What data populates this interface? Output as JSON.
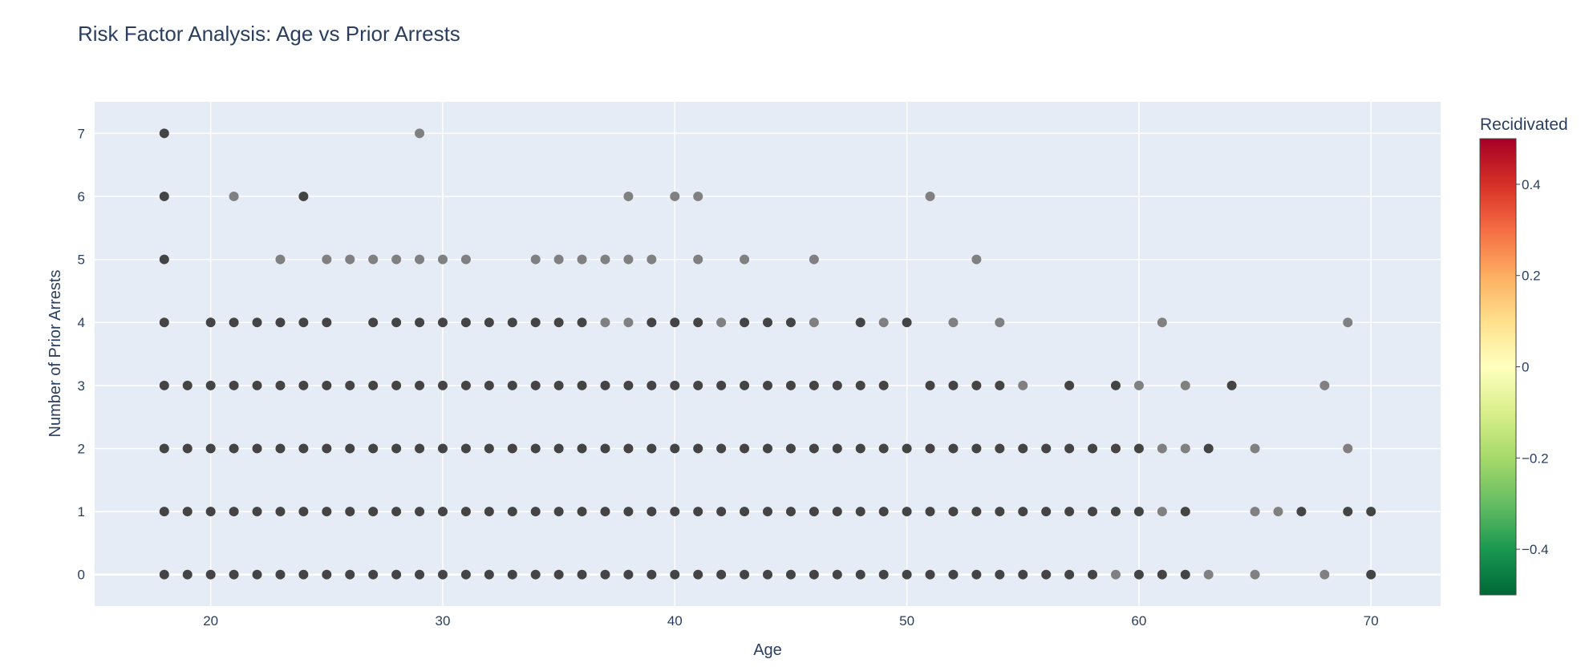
{
  "chart_data": {
    "type": "scatter",
    "title": "Risk Factor Analysis: Age vs Prior Arrests",
    "xlabel": "Age",
    "ylabel": "Number of Prior Arrests",
    "xlim": [
      15,
      73
    ],
    "ylim": [
      -0.5,
      7.5
    ],
    "xticks": [
      "20",
      "30",
      "40",
      "50",
      "60",
      "70"
    ],
    "yticks": [
      "0",
      "1",
      "2",
      "3",
      "4",
      "5",
      "6",
      "7"
    ],
    "grid": true,
    "marker_colors": {
      "dark": "#444444",
      "light": "#808080"
    },
    "points_dark": [
      [
        18,
        7
      ],
      [
        18,
        6
      ],
      [
        24,
        6
      ],
      [
        18,
        5
      ],
      [
        18,
        4
      ],
      [
        20,
        4
      ],
      [
        21,
        4
      ],
      [
        22,
        4
      ],
      [
        23,
        4
      ],
      [
        24,
        4
      ],
      [
        25,
        4
      ],
      [
        27,
        4
      ],
      [
        28,
        4
      ],
      [
        29,
        4
      ],
      [
        30,
        4
      ],
      [
        31,
        4
      ],
      [
        32,
        4
      ],
      [
        33,
        4
      ],
      [
        34,
        4
      ],
      [
        35,
        4
      ],
      [
        36,
        4
      ],
      [
        39,
        4
      ],
      [
        40,
        4
      ],
      [
        41,
        4
      ],
      [
        43,
        4
      ],
      [
        44,
        4
      ],
      [
        45,
        4
      ],
      [
        48,
        4
      ],
      [
        50,
        4
      ],
      [
        18,
        3
      ],
      [
        19,
        3
      ],
      [
        20,
        3
      ],
      [
        21,
        3
      ],
      [
        22,
        3
      ],
      [
        23,
        3
      ],
      [
        24,
        3
      ],
      [
        25,
        3
      ],
      [
        26,
        3
      ],
      [
        27,
        3
      ],
      [
        28,
        3
      ],
      [
        29,
        3
      ],
      [
        30,
        3
      ],
      [
        31,
        3
      ],
      [
        32,
        3
      ],
      [
        33,
        3
      ],
      [
        34,
        3
      ],
      [
        35,
        3
      ],
      [
        36,
        3
      ],
      [
        37,
        3
      ],
      [
        38,
        3
      ],
      [
        39,
        3
      ],
      [
        40,
        3
      ],
      [
        41,
        3
      ],
      [
        42,
        3
      ],
      [
        43,
        3
      ],
      [
        44,
        3
      ],
      [
        45,
        3
      ],
      [
        46,
        3
      ],
      [
        47,
        3
      ],
      [
        48,
        3
      ],
      [
        49,
        3
      ],
      [
        51,
        3
      ],
      [
        52,
        3
      ],
      [
        53,
        3
      ],
      [
        54,
        3
      ],
      [
        57,
        3
      ],
      [
        59,
        3
      ],
      [
        64,
        3
      ],
      [
        18,
        2
      ],
      [
        19,
        2
      ],
      [
        20,
        2
      ],
      [
        21,
        2
      ],
      [
        22,
        2
      ],
      [
        23,
        2
      ],
      [
        24,
        2
      ],
      [
        25,
        2
      ],
      [
        26,
        2
      ],
      [
        27,
        2
      ],
      [
        28,
        2
      ],
      [
        29,
        2
      ],
      [
        30,
        2
      ],
      [
        31,
        2
      ],
      [
        32,
        2
      ],
      [
        33,
        2
      ],
      [
        34,
        2
      ],
      [
        35,
        2
      ],
      [
        36,
        2
      ],
      [
        37,
        2
      ],
      [
        38,
        2
      ],
      [
        39,
        2
      ],
      [
        40,
        2
      ],
      [
        41,
        2
      ],
      [
        42,
        2
      ],
      [
        43,
        2
      ],
      [
        44,
        2
      ],
      [
        45,
        2
      ],
      [
        46,
        2
      ],
      [
        47,
        2
      ],
      [
        48,
        2
      ],
      [
        49,
        2
      ],
      [
        50,
        2
      ],
      [
        51,
        2
      ],
      [
        52,
        2
      ],
      [
        53,
        2
      ],
      [
        54,
        2
      ],
      [
        55,
        2
      ],
      [
        56,
        2
      ],
      [
        57,
        2
      ],
      [
        58,
        2
      ],
      [
        59,
        2
      ],
      [
        60,
        2
      ],
      [
        63,
        2
      ],
      [
        18,
        1
      ],
      [
        19,
        1
      ],
      [
        20,
        1
      ],
      [
        21,
        1
      ],
      [
        22,
        1
      ],
      [
        23,
        1
      ],
      [
        24,
        1
      ],
      [
        25,
        1
      ],
      [
        26,
        1
      ],
      [
        27,
        1
      ],
      [
        28,
        1
      ],
      [
        29,
        1
      ],
      [
        30,
        1
      ],
      [
        31,
        1
      ],
      [
        32,
        1
      ],
      [
        33,
        1
      ],
      [
        34,
        1
      ],
      [
        35,
        1
      ],
      [
        36,
        1
      ],
      [
        37,
        1
      ],
      [
        38,
        1
      ],
      [
        39,
        1
      ],
      [
        40,
        1
      ],
      [
        41,
        1
      ],
      [
        42,
        1
      ],
      [
        43,
        1
      ],
      [
        44,
        1
      ],
      [
        45,
        1
      ],
      [
        46,
        1
      ],
      [
        47,
        1
      ],
      [
        48,
        1
      ],
      [
        49,
        1
      ],
      [
        50,
        1
      ],
      [
        51,
        1
      ],
      [
        52,
        1
      ],
      [
        53,
        1
      ],
      [
        54,
        1
      ],
      [
        55,
        1
      ],
      [
        56,
        1
      ],
      [
        57,
        1
      ],
      [
        58,
        1
      ],
      [
        59,
        1
      ],
      [
        60,
        1
      ],
      [
        62,
        1
      ],
      [
        67,
        1
      ],
      [
        69,
        1
      ],
      [
        70,
        1
      ],
      [
        18,
        0
      ],
      [
        19,
        0
      ],
      [
        20,
        0
      ],
      [
        21,
        0
      ],
      [
        22,
        0
      ],
      [
        23,
        0
      ],
      [
        24,
        0
      ],
      [
        25,
        0
      ],
      [
        26,
        0
      ],
      [
        27,
        0
      ],
      [
        28,
        0
      ],
      [
        29,
        0
      ],
      [
        30,
        0
      ],
      [
        31,
        0
      ],
      [
        32,
        0
      ],
      [
        33,
        0
      ],
      [
        34,
        0
      ],
      [
        35,
        0
      ],
      [
        36,
        0
      ],
      [
        37,
        0
      ],
      [
        38,
        0
      ],
      [
        39,
        0
      ],
      [
        40,
        0
      ],
      [
        41,
        0
      ],
      [
        42,
        0
      ],
      [
        43,
        0
      ],
      [
        44,
        0
      ],
      [
        45,
        0
      ],
      [
        46,
        0
      ],
      [
        47,
        0
      ],
      [
        48,
        0
      ],
      [
        49,
        0
      ],
      [
        50,
        0
      ],
      [
        51,
        0
      ],
      [
        52,
        0
      ],
      [
        53,
        0
      ],
      [
        54,
        0
      ],
      [
        55,
        0
      ],
      [
        56,
        0
      ],
      [
        57,
        0
      ],
      [
        58,
        0
      ],
      [
        60,
        0
      ],
      [
        61,
        0
      ],
      [
        62,
        0
      ],
      [
        70,
        0
      ]
    ],
    "points_light": [
      [
        29,
        7
      ],
      [
        21,
        6
      ],
      [
        38,
        6
      ],
      [
        40,
        6
      ],
      [
        41,
        6
      ],
      [
        51,
        6
      ],
      [
        23,
        5
      ],
      [
        25,
        5
      ],
      [
        26,
        5
      ],
      [
        27,
        5
      ],
      [
        28,
        5
      ],
      [
        29,
        5
      ],
      [
        30,
        5
      ],
      [
        31,
        5
      ],
      [
        34,
        5
      ],
      [
        35,
        5
      ],
      [
        36,
        5
      ],
      [
        37,
        5
      ],
      [
        38,
        5
      ],
      [
        39,
        5
      ],
      [
        41,
        5
      ],
      [
        43,
        5
      ],
      [
        46,
        5
      ],
      [
        53,
        5
      ],
      [
        37,
        4
      ],
      [
        38,
        4
      ],
      [
        42,
        4
      ],
      [
        46,
        4
      ],
      [
        49,
        4
      ],
      [
        52,
        4
      ],
      [
        54,
        4
      ],
      [
        61,
        4
      ],
      [
        69,
        4
      ],
      [
        55,
        3
      ],
      [
        60,
        3
      ],
      [
        62,
        3
      ],
      [
        68,
        3
      ],
      [
        61,
        2
      ],
      [
        62,
        2
      ],
      [
        65,
        2
      ],
      [
        69,
        2
      ],
      [
        61,
        1
      ],
      [
        65,
        1
      ],
      [
        66,
        1
      ],
      [
        59,
        0
      ],
      [
        63,
        0
      ],
      [
        65,
        0
      ],
      [
        68,
        0
      ]
    ],
    "colorbar": {
      "title": "Recidivated",
      "range": [
        -0.5,
        0.5
      ],
      "ticks": [
        "0.4",
        "0.2",
        "0",
        "−0.2",
        "−0.4"
      ],
      "colors": [
        "#a50026",
        "#d73027",
        "#f46d43",
        "#fdae61",
        "#fee08b",
        "#ffffbf",
        "#d9ef8b",
        "#a6d96a",
        "#66bd63",
        "#1a9850",
        "#006837"
      ]
    }
  }
}
